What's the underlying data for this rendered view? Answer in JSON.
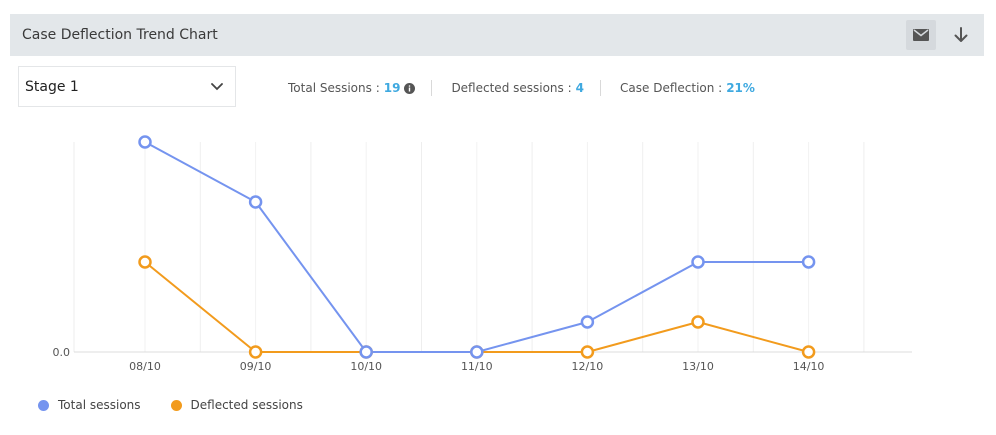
{
  "header": {
    "title": "Case Deflection Trend Chart"
  },
  "toolbar": {
    "mail_icon": "mail-icon",
    "download_icon": "download-icon"
  },
  "stage_select": {
    "value": "Stage 1",
    "icon": "chevron-down-icon"
  },
  "stats": {
    "total_sessions_label": "Total Sessions :",
    "total_sessions_value": "19",
    "deflected_label": "Deflected sessions :",
    "deflected_value": "4",
    "deflection_label": "Case Deflection :",
    "deflection_value": "21%",
    "info_icon": "info-icon"
  },
  "colors": {
    "total": "#7594ef",
    "deflected": "#f29b1d",
    "accent": "#3fa9e0"
  },
  "chart_data": {
    "type": "line",
    "x": [
      "08/10",
      "09/10",
      "10/10",
      "11/10",
      "12/10",
      "13/10",
      "14/10"
    ],
    "y_tick_labels": [
      "0.0"
    ],
    "ylim": [
      0,
      7
    ],
    "grid": "vertical",
    "legend_position": "bottom-left",
    "series": [
      {
        "name": "Total sessions",
        "color": "#7594ef",
        "values": [
          7,
          5,
          0,
          0,
          1,
          3,
          3
        ]
      },
      {
        "name": "Deflected sessions",
        "color": "#f29b1d",
        "values": [
          3,
          0,
          0,
          0,
          0,
          1,
          0
        ]
      }
    ]
  },
  "legend": {
    "items": [
      "Total sessions",
      "Deflected sessions"
    ]
  }
}
